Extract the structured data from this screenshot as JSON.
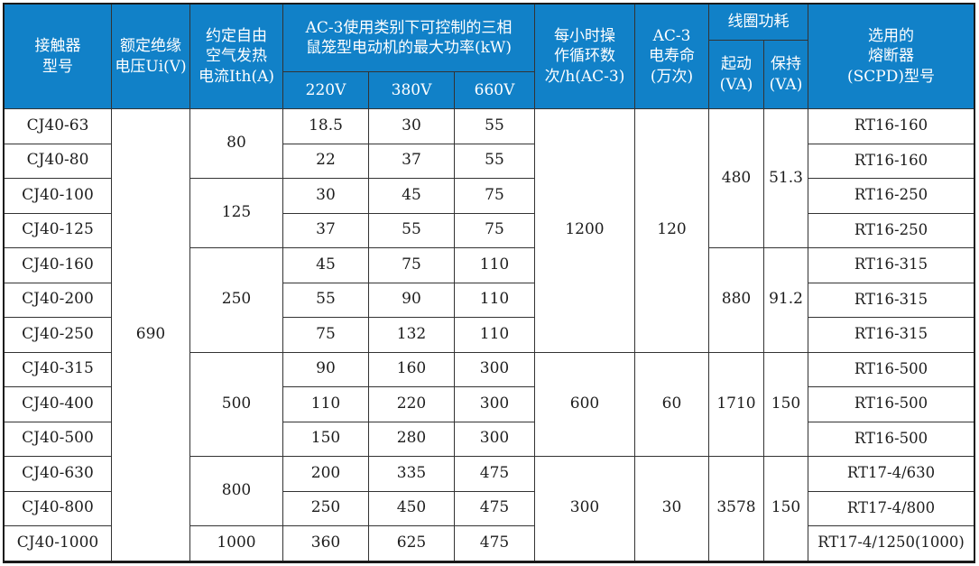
{
  "colors": {
    "header_bg": "#1181c8",
    "header_text": "#ffffff",
    "grid_line": "#333333",
    "body_text": "#1c1c1c"
  },
  "table": {
    "header": {
      "model": "接触器\n型号",
      "ui": "额定绝缘\n电压Ui(V)",
      "ith": "约定自由\n空气发热\n电流Ith(A)",
      "power_group": "AC-3使用类别下可控制的三相\n鼠笼型电动机的最大功率(kW)",
      "v220": "220V",
      "v380": "380V",
      "v660": "660V",
      "cycles": "每小时操\n作循环数\n次/h(AC-3)",
      "life": "AC-3\n电寿命\n(万次)",
      "coil_group": "线圈功耗",
      "coil_start": "起动\n(VA)",
      "coil_hold": "保持\n(VA)",
      "fuse": "选用的\n熔断器\n(SCPD)型号"
    },
    "ui_value": "690",
    "rows": [
      {
        "model": "CJ40-63",
        "p220": "18.5",
        "p380": "30",
        "p660": "55",
        "fuse": "RT16-160"
      },
      {
        "model": "CJ40-80",
        "p220": "22",
        "p380": "37",
        "p660": "55",
        "fuse": "RT16-160"
      },
      {
        "model": "CJ40-100",
        "p220": "30",
        "p380": "45",
        "p660": "75",
        "fuse": "RT16-250"
      },
      {
        "model": "CJ40-125",
        "p220": "37",
        "p380": "55",
        "p660": "75",
        "fuse": "RT16-250"
      },
      {
        "model": "CJ40-160",
        "p220": "45",
        "p380": "75",
        "p660": "110",
        "fuse": "RT16-315"
      },
      {
        "model": "CJ40-200",
        "p220": "55",
        "p380": "90",
        "p660": "110",
        "fuse": "RT16-315"
      },
      {
        "model": "CJ40-250",
        "p220": "75",
        "p380": "132",
        "p660": "110",
        "fuse": "RT16-315"
      },
      {
        "model": "CJ40-315",
        "p220": "90",
        "p380": "160",
        "p660": "300",
        "fuse": "RT16-500"
      },
      {
        "model": "CJ40-400",
        "p220": "110",
        "p380": "220",
        "p660": "300",
        "fuse": "RT16-500"
      },
      {
        "model": "CJ40-500",
        "p220": "150",
        "p380": "280",
        "p660": "300",
        "fuse": "RT16-500"
      },
      {
        "model": "CJ40-630",
        "p220": "200",
        "p380": "335",
        "p660": "475",
        "fuse": "RT17-4/630"
      },
      {
        "model": "CJ40-800",
        "p220": "250",
        "p380": "450",
        "p660": "475",
        "fuse": "RT17-4/800"
      },
      {
        "model": "CJ40-1000",
        "p220": "360",
        "p380": "625",
        "p660": "475",
        "fuse": "RT17-4/1250(1000)"
      }
    ],
    "ith_groups": [
      {
        "value": "80",
        "rows": 2
      },
      {
        "value": "125",
        "rows": 2
      },
      {
        "value": "250",
        "rows": 3
      },
      {
        "value": "500",
        "rows": 3
      },
      {
        "value": "800",
        "rows": 2
      },
      {
        "value": "1000",
        "rows": 1
      }
    ],
    "duty_groups": [
      {
        "cycles": "1200",
        "life": "120",
        "rows": 7
      },
      {
        "cycles": "600",
        "life": "60",
        "rows": 3
      },
      {
        "cycles": "300",
        "life": "30",
        "rows": 3
      }
    ],
    "coil_groups": [
      {
        "start": "480",
        "hold": "51.3",
        "rows": 4
      },
      {
        "start": "880",
        "hold": "91.2",
        "rows": 3
      },
      {
        "start": "1710",
        "hold": "150",
        "rows": 3
      },
      {
        "start": "3578",
        "hold": "150",
        "rows": 3
      }
    ]
  }
}
